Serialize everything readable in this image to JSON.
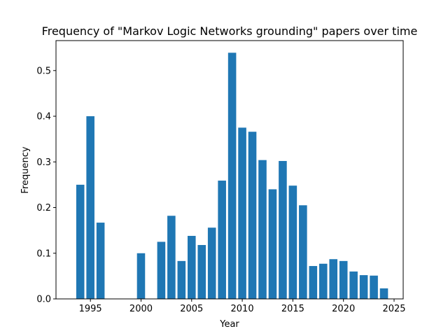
{
  "chart_data": {
    "type": "bar",
    "title": "Frequency of \"Markov Logic Networks grounding\" papers over time",
    "xlabel": "Year",
    "ylabel": "Frequency",
    "xlim": [
      1991.6,
      2025.9
    ],
    "ylim": [
      0,
      0.5656
    ],
    "xticks": [
      1995,
      2000,
      2005,
      2010,
      2015,
      2020,
      2025
    ],
    "yticks": [
      0.0,
      0.1,
      0.2,
      0.3,
      0.4,
      0.5
    ],
    "ytick_labels": [
      "0.0",
      "0.1",
      "0.2",
      "0.3",
      "0.4",
      "0.5"
    ],
    "grid": false,
    "color": "#1f77b4",
    "x": [
      1994,
      1995,
      1996,
      2000,
      2002,
      2003,
      2004,
      2005,
      2006,
      2007,
      2008,
      2009,
      2010,
      2011,
      2012,
      2013,
      2014,
      2015,
      2016,
      2017,
      2018,
      2019,
      2020,
      2021,
      2022,
      2023,
      2024
    ],
    "values": [
      0.25,
      0.4,
      0.167,
      0.1,
      0.125,
      0.182,
      0.083,
      0.138,
      0.118,
      0.156,
      0.259,
      0.539,
      0.375,
      0.366,
      0.304,
      0.24,
      0.302,
      0.248,
      0.205,
      0.072,
      0.077,
      0.087,
      0.083,
      0.06,
      0.052,
      0.051,
      0.023
    ]
  }
}
